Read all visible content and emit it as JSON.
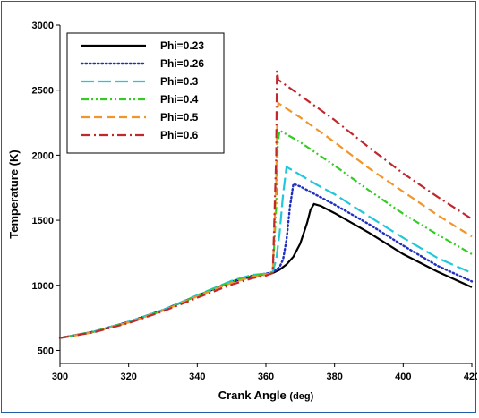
{
  "chart_data": {
    "type": "line",
    "title": "",
    "xlabel": "Crank Angle",
    "xlabel_unit": "(deg)",
    "ylabel": "Temperature (K)",
    "xlim": [
      300,
      420
    ],
    "ylim": [
      400,
      3000
    ],
    "xticks": [
      "300",
      "320",
      "340",
      "360",
      "380",
      "400",
      "420"
    ],
    "yticks": [
      "500",
      "1000",
      "1500",
      "2000",
      "2500",
      "3000"
    ],
    "legend_position": "top-left",
    "grid": false,
    "series": [
      {
        "name": "Phi=0.23",
        "color": "#000000",
        "style": "solid",
        "points": [
          [
            300,
            595
          ],
          [
            310,
            645
          ],
          [
            320,
            720
          ],
          [
            330,
            810
          ],
          [
            340,
            920
          ],
          [
            350,
            1025
          ],
          [
            356,
            1070
          ],
          [
            360,
            1085
          ],
          [
            362,
            1095
          ],
          [
            364,
            1120
          ],
          [
            366,
            1160
          ],
          [
            368,
            1220
          ],
          [
            370,
            1320
          ],
          [
            372,
            1480
          ],
          [
            373,
            1580
          ],
          [
            374,
            1625
          ],
          [
            376,
            1610
          ],
          [
            380,
            1555
          ],
          [
            390,
            1405
          ],
          [
            400,
            1240
          ],
          [
            410,
            1105
          ],
          [
            420,
            985
          ]
        ]
      },
      {
        "name": "Phi=0.26",
        "color": "#1f2fbf",
        "style": "dot",
        "points": [
          [
            300,
            595
          ],
          [
            310,
            645
          ],
          [
            320,
            720
          ],
          [
            330,
            810
          ],
          [
            340,
            920
          ],
          [
            350,
            1030
          ],
          [
            356,
            1075
          ],
          [
            360,
            1090
          ],
          [
            362,
            1100
          ],
          [
            364,
            1140
          ],
          [
            365,
            1200
          ],
          [
            366,
            1350
          ],
          [
            367,
            1600
          ],
          [
            368,
            1780
          ],
          [
            370,
            1760
          ],
          [
            375,
            1690
          ],
          [
            380,
            1620
          ],
          [
            390,
            1470
          ],
          [
            400,
            1305
          ],
          [
            410,
            1150
          ],
          [
            420,
            1030
          ]
        ]
      },
      {
        "name": "Phi=0.3",
        "color": "#22c8d8",
        "style": "longdash",
        "points": [
          [
            300,
            595
          ],
          [
            310,
            645
          ],
          [
            320,
            720
          ],
          [
            330,
            810
          ],
          [
            340,
            925
          ],
          [
            350,
            1035
          ],
          [
            356,
            1080
          ],
          [
            360,
            1090
          ],
          [
            362,
            1105
          ],
          [
            363,
            1200
          ],
          [
            364,
            1400
          ],
          [
            365,
            1700
          ],
          [
            366,
            1910
          ],
          [
            368,
            1880
          ],
          [
            375,
            1770
          ],
          [
            380,
            1700
          ],
          [
            390,
            1530
          ],
          [
            400,
            1365
          ],
          [
            410,
            1210
          ],
          [
            420,
            1095
          ]
        ]
      },
      {
        "name": "Phi=0.4",
        "color": "#33cc22",
        "style": "dashdotdot",
        "points": [
          [
            300,
            595
          ],
          [
            310,
            645
          ],
          [
            320,
            715
          ],
          [
            330,
            805
          ],
          [
            340,
            920
          ],
          [
            350,
            1030
          ],
          [
            356,
            1075
          ],
          [
            360,
            1085
          ],
          [
            362,
            1100
          ],
          [
            363,
            1600
          ],
          [
            363.5,
            2100
          ],
          [
            364,
            2190
          ],
          [
            370,
            2100
          ],
          [
            380,
            1920
          ],
          [
            390,
            1730
          ],
          [
            400,
            1550
          ],
          [
            410,
            1390
          ],
          [
            420,
            1240
          ]
        ]
      },
      {
        "name": "Phi=0.5",
        "color": "#f0952a",
        "style": "dash",
        "points": [
          [
            300,
            595
          ],
          [
            310,
            640
          ],
          [
            320,
            715
          ],
          [
            330,
            805
          ],
          [
            340,
            915
          ],
          [
            350,
            1020
          ],
          [
            356,
            1065
          ],
          [
            360,
            1080
          ],
          [
            362,
            1100
          ],
          [
            363,
            1800
          ],
          [
            363.3,
            2300
          ],
          [
            363.6,
            2400
          ],
          [
            370,
            2290
          ],
          [
            380,
            2100
          ],
          [
            390,
            1900
          ],
          [
            400,
            1720
          ],
          [
            410,
            1540
          ],
          [
            420,
            1375
          ]
        ]
      },
      {
        "name": "Phi=0.6",
        "color": "#c0282c",
        "style": "dashdot",
        "points": [
          [
            300,
            595
          ],
          [
            310,
            640
          ],
          [
            320,
            710
          ],
          [
            330,
            800
          ],
          [
            340,
            905
          ],
          [
            350,
            1005
          ],
          [
            356,
            1055
          ],
          [
            360,
            1075
          ],
          [
            362,
            1095
          ],
          [
            363,
            2000
          ],
          [
            363.2,
            2650
          ],
          [
            363.6,
            2580
          ],
          [
            370,
            2460
          ],
          [
            380,
            2270
          ],
          [
            390,
            2060
          ],
          [
            400,
            1860
          ],
          [
            410,
            1680
          ],
          [
            420,
            1510
          ]
        ]
      }
    ]
  }
}
